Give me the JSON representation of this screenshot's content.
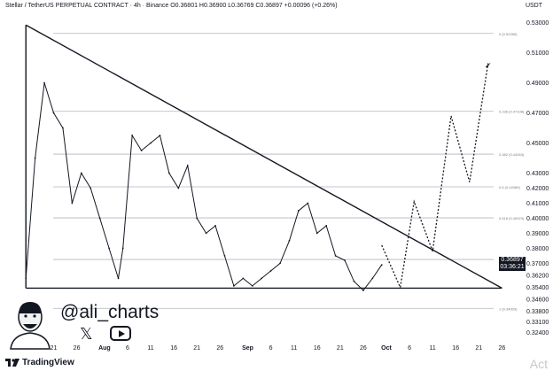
{
  "header": {
    "symbol": "Stellar / TetherUS PERPETUAL CONTRACT · 4h · Binance",
    "ohlc": "O0.36801 H0.36900 L0.36769 C0.36897 +0.00096 (+0.26%)",
    "currency": "USDT"
  },
  "price_tag": {
    "price": "0.36897",
    "countdown": "03:36:21"
  },
  "branding": {
    "handle": "@ali_charts",
    "x_icon": "x-logo-icon",
    "youtube_icon": "youtube-icon",
    "platform": "TradingView"
  },
  "overlay_text": "Act",
  "chart_data": {
    "type": "line",
    "ylim": [
      0.3137,
      0.5357
    ],
    "y_ticks": [
      "0.53000",
      "0.51000",
      "0.49000",
      "0.47000",
      "0.45000",
      "0.43000",
      "0.42000",
      "0.41000",
      "0.40000",
      "0.39000",
      "0.38000",
      "0.37000",
      "0.36200",
      "0.35400",
      "0.34600",
      "0.33800",
      "0.33100",
      "0.32400"
    ],
    "y_tick_values": [
      0.53,
      0.51,
      0.49,
      0.47,
      0.45,
      0.43,
      0.42,
      0.41,
      0.4,
      0.39,
      0.38,
      0.37,
      0.362,
      0.354,
      0.346,
      0.338,
      0.331,
      0.324
    ],
    "x_ticks": [
      "21",
      "26",
      "Aug",
      "6",
      "11",
      "16",
      "21",
      "26",
      "Sep",
      "6",
      "11",
      "16",
      "21",
      "26",
      "Oct",
      "6",
      "11",
      "16",
      "21",
      "26"
    ],
    "x_tick_dates": [
      "2024-07-21",
      "2024-07-26",
      "2024-08-01",
      "2024-08-06",
      "2024-08-11",
      "2024-08-16",
      "2024-08-21",
      "2024-08-26",
      "2024-09-01",
      "2024-09-06",
      "2024-09-11",
      "2024-09-16",
      "2024-09-21",
      "2024-09-26",
      "2024-10-01",
      "2024-10-06",
      "2024-10-11",
      "2024-10-16",
      "2024-10-21",
      "2024-10-26"
    ],
    "xlim": [
      "2024-07-14",
      "2024-10-29"
    ],
    "fib_levels": [
      {
        "label": "0 (0.52289)",
        "value": 0.52289
      },
      {
        "label": "0.236 (0.47108)",
        "value": 0.47108
      },
      {
        "label": "0.382 (0.44263)",
        "value": 0.44263
      },
      {
        "label": "0.5 (0.42089)",
        "value": 0.42089
      },
      {
        "label": "0.618 (0.40023)",
        "value": 0.40023
      },
      {
        "label": "0.786 (0.37254)",
        "value": 0.37254
      },
      {
        "label": "1 (0.34003)",
        "value": 0.34003
      }
    ],
    "triangle": {
      "apex_top": {
        "date": "2024-07-15",
        "price": 0.5285
      },
      "right_vertex": {
        "date": "2024-10-26",
        "price": 0.3535
      },
      "bottom_left": {
        "date": "2024-07-15",
        "price": 0.3535
      }
    },
    "price_series": {
      "dates": [
        "2024-07-15",
        "2024-07-17",
        "2024-07-19",
        "2024-07-21",
        "2024-07-23",
        "2024-07-25",
        "2024-07-27",
        "2024-07-29",
        "2024-07-31",
        "2024-08-02",
        "2024-08-04",
        "2024-08-05",
        "2024-08-07",
        "2024-08-09",
        "2024-08-11",
        "2024-08-13",
        "2024-08-15",
        "2024-08-17",
        "2024-08-19",
        "2024-08-21",
        "2024-08-23",
        "2024-08-25",
        "2024-08-27",
        "2024-08-29",
        "2024-08-31",
        "2024-09-02",
        "2024-09-04",
        "2024-09-06",
        "2024-09-08",
        "2024-09-10",
        "2024-09-12",
        "2024-09-14",
        "2024-09-16",
        "2024-09-18",
        "2024-09-20",
        "2024-09-22",
        "2024-09-24",
        "2024-09-26",
        "2024-09-28",
        "2024-09-30"
      ],
      "values": [
        0.36,
        0.44,
        0.49,
        0.47,
        0.46,
        0.41,
        0.43,
        0.42,
        0.4,
        0.38,
        0.36,
        0.38,
        0.455,
        0.445,
        0.45,
        0.455,
        0.43,
        0.42,
        0.435,
        0.4,
        0.39,
        0.395,
        0.375,
        0.355,
        0.36,
        0.355,
        0.36,
        0.365,
        0.37,
        0.385,
        0.405,
        0.41,
        0.39,
        0.395,
        0.375,
        0.372,
        0.358,
        0.352,
        0.36,
        0.369
      ]
    },
    "projection": {
      "dates": [
        "2024-09-30",
        "2024-10-04",
        "2024-10-07",
        "2024-10-11",
        "2024-10-15",
        "2024-10-19",
        "2024-10-23"
      ],
      "values": [
        0.382,
        0.354,
        0.411,
        0.378,
        0.468,
        0.424,
        0.503
      ]
    }
  }
}
